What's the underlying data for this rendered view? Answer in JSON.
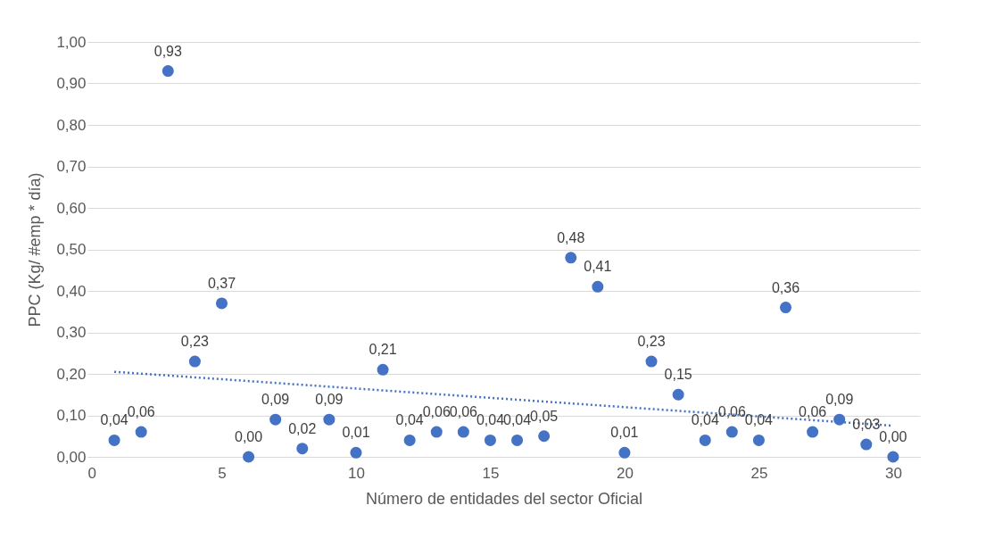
{
  "chart_data": {
    "type": "scatter",
    "xlabel": "Número de entidades del sector Oficial",
    "ylabel": "PPC (Kg/ #emp * día)",
    "x": [
      1,
      2,
      3,
      4,
      5,
      6,
      7,
      8,
      9,
      10,
      11,
      12,
      13,
      14,
      15,
      16,
      17,
      18,
      19,
      20,
      21,
      22,
      23,
      24,
      25,
      26,
      27,
      28,
      29,
      30
    ],
    "series": [
      {
        "marker": "circle",
        "color": "#4472c4",
        "values": [
          0.04,
          0.06,
          0.93,
          0.23,
          0.37,
          0.0,
          0.09,
          0.02,
          0.09,
          0.01,
          0.21,
          0.04,
          0.06,
          0.06,
          0.04,
          0.04,
          0.05,
          0.48,
          0.41,
          0.01,
          0.23,
          0.15,
          0.04,
          0.06,
          0.04,
          0.36,
          0.06,
          0.09,
          0.03,
          0.0
        ],
        "value_labels": [
          "0,04",
          "0,06",
          "0,93",
          "0,23",
          "0,37",
          "0,00",
          "0,09",
          "0,02",
          "0,09",
          "0,01",
          "0,21",
          "0,04",
          "0,06",
          "0,06",
          "0,04",
          "0,04",
          "0,05",
          "0,48",
          "0,41",
          "0,01",
          "0,23",
          "0,15",
          "0,04",
          "0,06",
          "0,04",
          "0,36",
          "0,06",
          "0,09",
          "0,03",
          "0,00"
        ]
      },
      {
        "type": "line",
        "color": "#4472c4",
        "line_style": "dotted",
        "x": [
          1,
          30
        ],
        "values": [
          0.205,
          0.075
        ]
      }
    ],
    "grid": "y",
    "xlim": [
      0,
      31
    ],
    "xticks": [
      0,
      5,
      10,
      15,
      20,
      25,
      30
    ],
    "ylim": [
      0,
      1
    ],
    "yticks": [
      {
        "value": 0,
        "label": "0,00"
      },
      {
        "value": 0.1,
        "label": "0,10"
      },
      {
        "value": 0.2,
        "label": "0,20"
      },
      {
        "value": 0.3,
        "label": "0,30"
      },
      {
        "value": 0.4,
        "label": "0,40"
      },
      {
        "value": 0.5,
        "label": "0,50"
      },
      {
        "value": 0.6,
        "label": "0,60"
      },
      {
        "value": 0.7,
        "label": "0,70"
      },
      {
        "value": 0.8,
        "label": "0,80"
      },
      {
        "value": 0.9,
        "label": "0,90"
      },
      {
        "value": 1,
        "label": "1,00"
      }
    ]
  }
}
